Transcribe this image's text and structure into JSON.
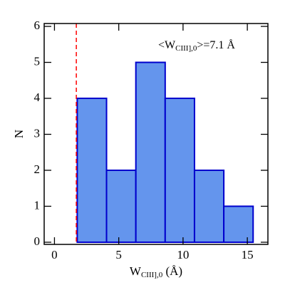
{
  "chart_data": {
    "type": "histogram",
    "bins": [
      1.77,
      4.05,
      6.33,
      8.61,
      10.89,
      13.17,
      15.45
    ],
    "values": [
      4,
      2,
      5,
      4,
      2,
      1
    ],
    "color": "#6495ed",
    "edgecolor": "#0000cd",
    "xlim": [
      -0.8,
      16.6
    ],
    "xticks": [
      0,
      5,
      10,
      15
    ],
    "ylim": [
      -0.06,
      6.08
    ],
    "yticks": [
      0,
      1,
      2,
      3,
      4,
      5,
      6
    ],
    "ylabel": "N",
    "xlabel": {
      "main": "W",
      "subscript": "CIII],0",
      "suffix": " (Å)"
    },
    "annotation": {
      "prefix": "<W",
      "subscript": "CIII],0",
      "suffix": ">=7.1 Å"
    },
    "vline": {
      "x": 1.7,
      "color": "#ff0000"
    }
  }
}
